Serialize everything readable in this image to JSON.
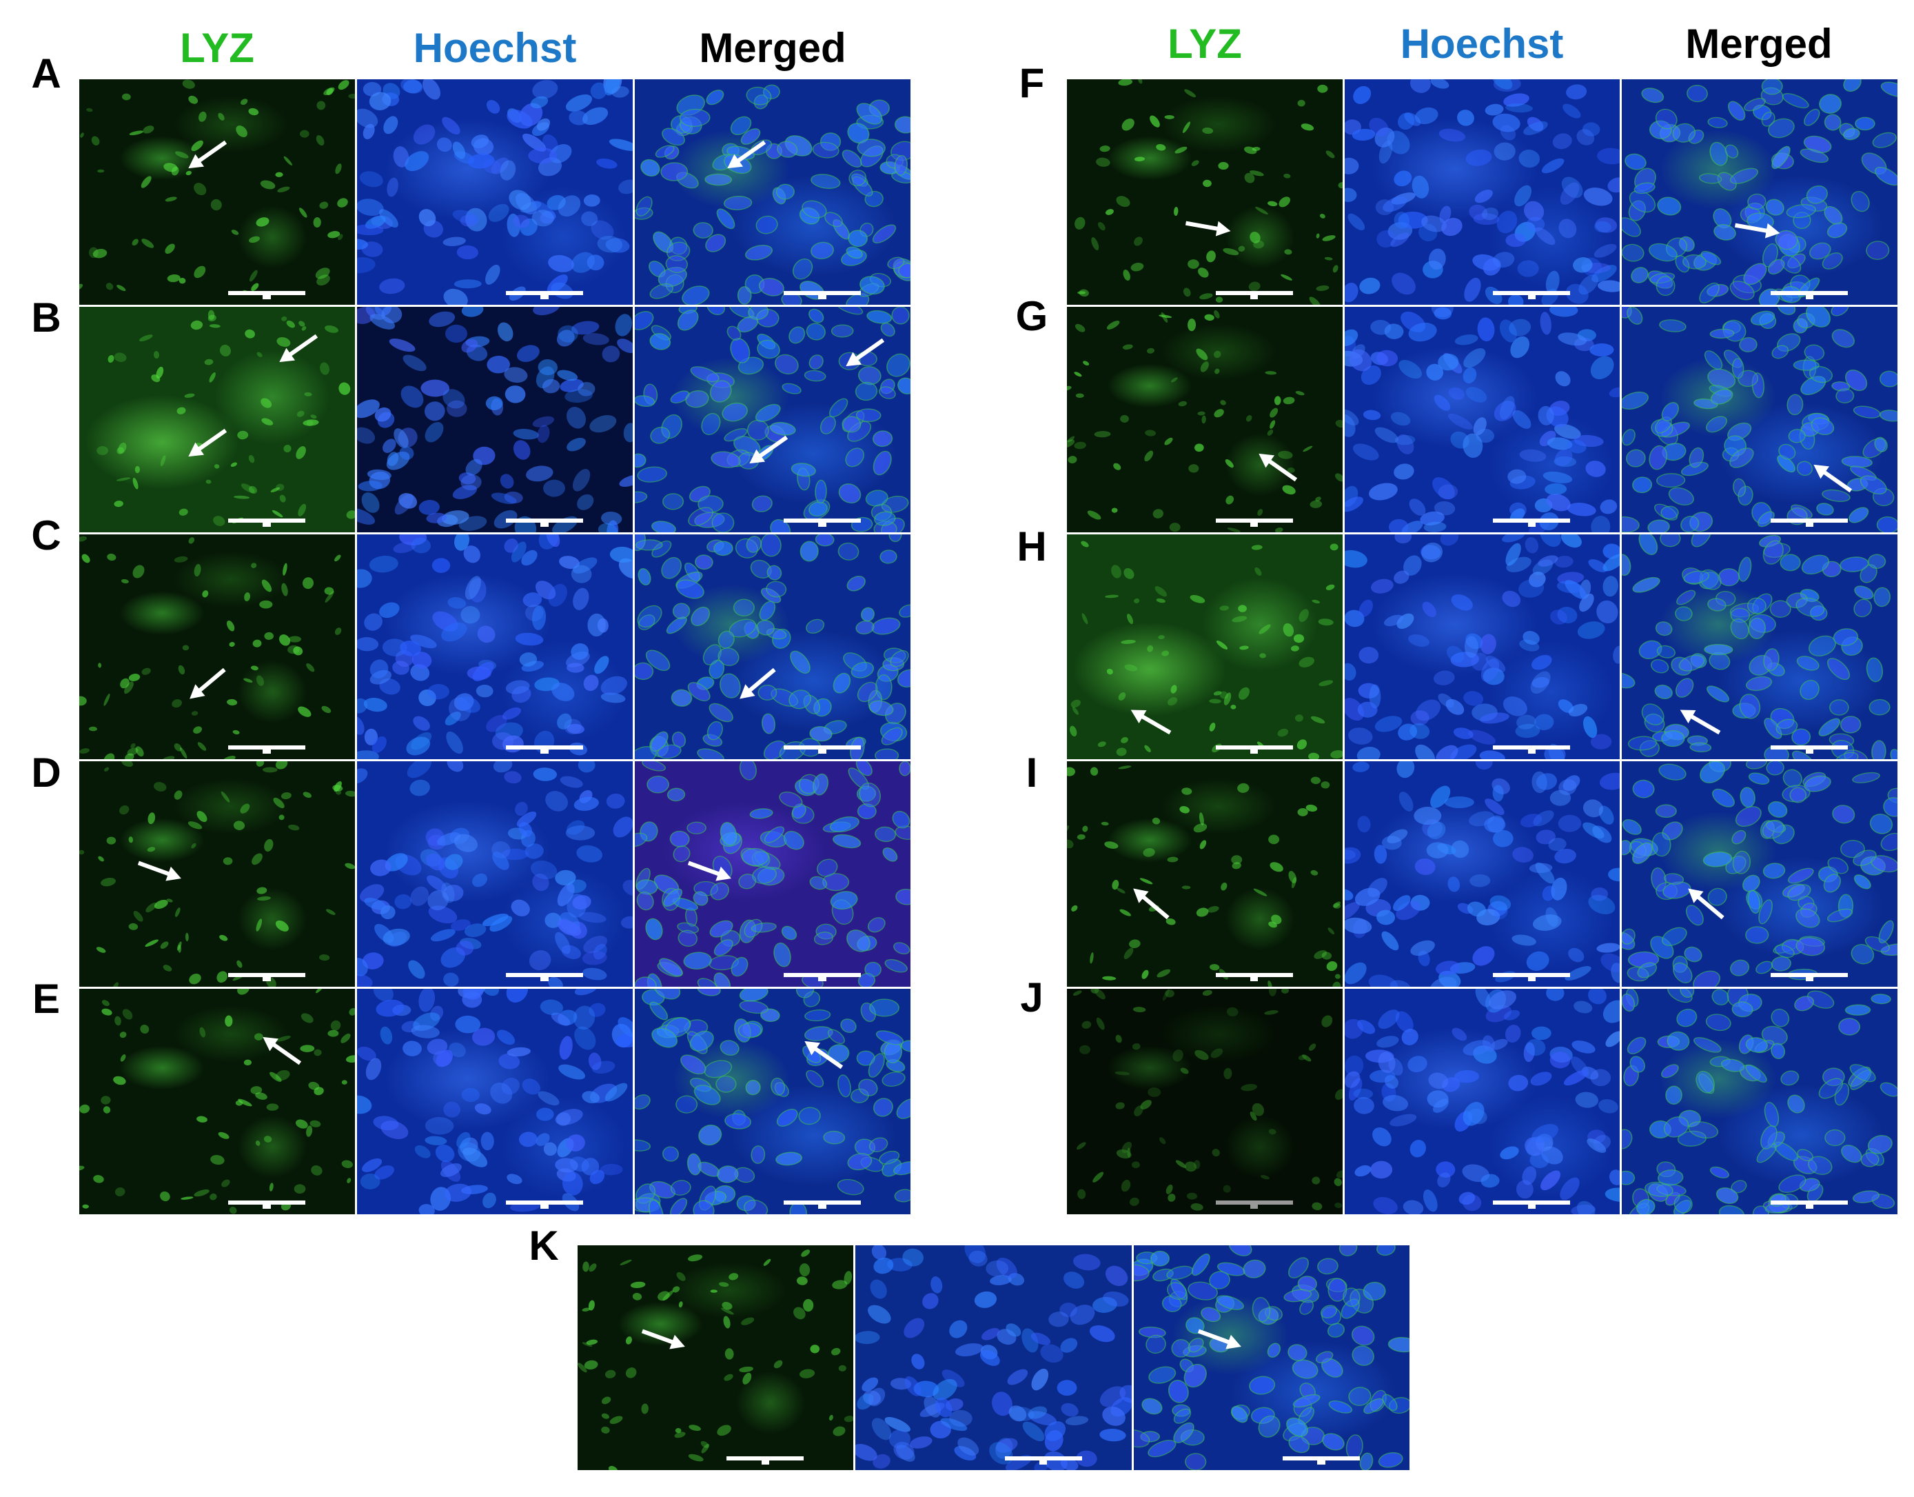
{
  "columns": {
    "lyz": "LYZ",
    "hoechst": "Hoechst",
    "merged": "Merged",
    "lyz_color": "#22bb22",
    "hoechst_color": "#1e78c8",
    "merged_color": "#000000"
  },
  "panels": {
    "A": "A",
    "B": "B",
    "C": "C",
    "D": "D",
    "E": "E",
    "F": "F",
    "G": "G",
    "H": "H",
    "I": "I",
    "J": "J",
    "K": "K"
  },
  "colors": {
    "arrow": "#ffffff",
    "scale_bar": "#ffffff",
    "background": "#ffffff"
  }
}
